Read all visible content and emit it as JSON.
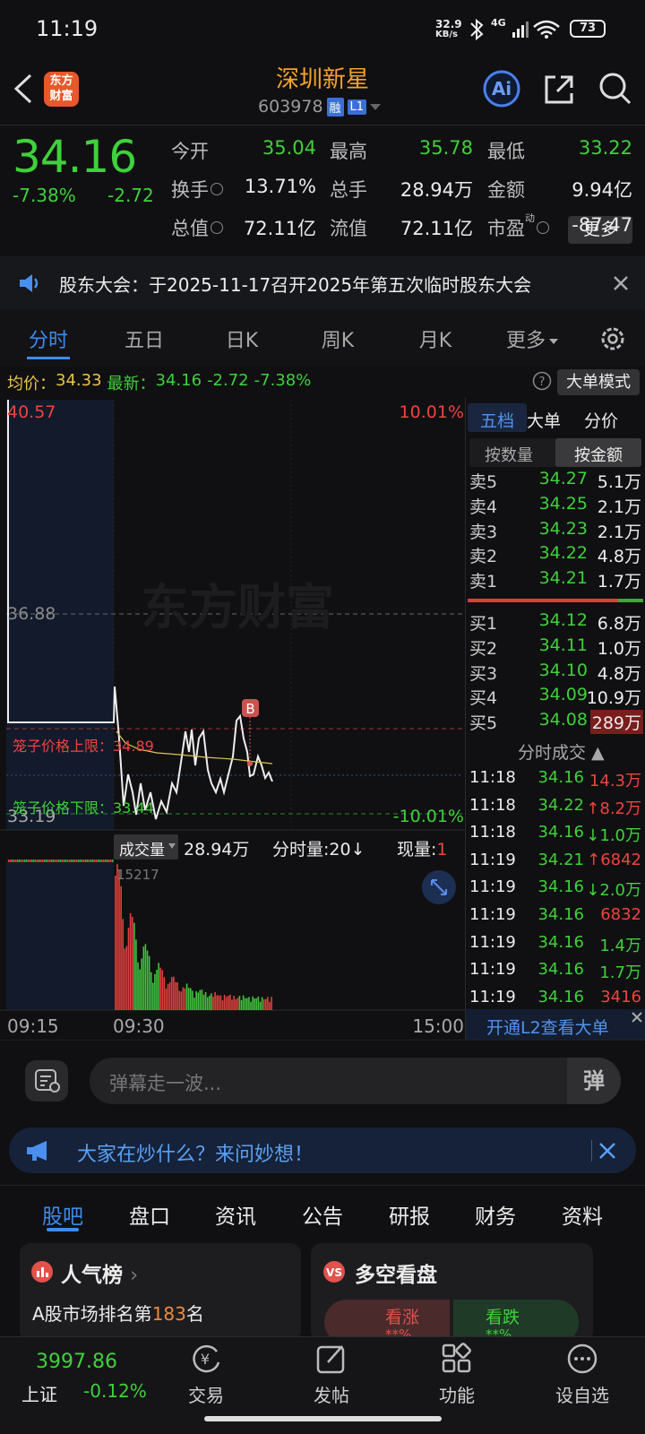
{
  "status_bar": {
    "time": "11:19",
    "net_speed": "32.9",
    "net_unit": "KB/s",
    "network": "4G",
    "battery": "73"
  },
  "header": {
    "logo": [
      "东方",
      "财富"
    ],
    "title": "深圳新星",
    "code": "603978",
    "badges": [
      "融",
      "L1"
    ]
  },
  "quote": {
    "price": "34.16",
    "change_pct": "-7.38%",
    "change": "-2.72",
    "stats": [
      {
        "label": "今开",
        "value": "35.04"
      },
      {
        "label": "最高",
        "value": "35.78"
      },
      {
        "label": "最低",
        "value": "33.22"
      },
      {
        "label": "换手",
        "value": "13.71%"
      },
      {
        "label": "总手",
        "value": "28.94万"
      },
      {
        "label": "金额",
        "value": "9.94亿"
      },
      {
        "label": "总值",
        "value": "72.11亿"
      },
      {
        "label": "流值",
        "value": "72.11亿"
      },
      {
        "label": "市盈",
        "sup": "动",
        "value": "-87.47"
      }
    ],
    "more": "更多"
  },
  "notice": "股东大会：于2025-11-17召开2025年第五次临时股东大会",
  "tabs": [
    "分时",
    "五日",
    "日K",
    "周K",
    "月K",
    "更多"
  ],
  "intraday": {
    "avg_label": "均价：",
    "avg": "34.33",
    "latest_label": "最新：",
    "latest": "34.16",
    "change": "-2.72",
    "change_pct": "-7.38%",
    "mode_button": "大单模式",
    "y_max": "40.57",
    "y_max_pct": "10.01%",
    "y_mid": "36.88",
    "y_min": "33.19",
    "y_min_pct": "-10.01%",
    "upper_limit": "笼子价格上限：34.89",
    "lower_limit": "笼子价格下限：33.44",
    "watermark": "东方财富",
    "marker": "B"
  },
  "volume": {
    "label": "成交量",
    "total": "28.94万",
    "period_label": "分时量:20",
    "arrow": "↓",
    "current_label": "现量:",
    "current": "1",
    "max": "15217",
    "times": [
      "09:15",
      "09:30",
      "15:00"
    ]
  },
  "order_book": {
    "tabs": [
      "五档",
      "大单",
      "分价"
    ],
    "modes": [
      "按数量",
      "按金额"
    ],
    "asks": [
      [
        "卖5",
        "34.27",
        "5.1万"
      ],
      [
        "卖4",
        "34.25",
        "2.1万"
      ],
      [
        "卖3",
        "34.23",
        "2.1万"
      ],
      [
        "卖2",
        "34.22",
        "4.8万"
      ],
      [
        "卖1",
        "34.21",
        "1.7万"
      ]
    ],
    "bids": [
      [
        "买1",
        "34.12",
        "6.8万"
      ],
      [
        "买2",
        "34.11",
        "1.0万"
      ],
      [
        "买3",
        "34.10",
        "4.8万"
      ],
      [
        "买4",
        "34.09",
        "10.9万"
      ],
      [
        "买5",
        "34.08",
        "289万"
      ]
    ]
  },
  "trades": {
    "title": "分时成交",
    "rows": [
      [
        "11:18",
        "34.16",
        "14.3万"
      ],
      [
        "11:18",
        "34.22",
        "↑8.2万"
      ],
      [
        "11:18",
        "34.16",
        "↓1.0万"
      ],
      [
        "11:19",
        "34.21",
        "↑6842"
      ],
      [
        "11:19",
        "34.16",
        "↓2.0万"
      ],
      [
        "11:19",
        "34.16",
        "6832"
      ],
      [
        "11:19",
        "34.16",
        "1.4万"
      ],
      [
        "11:19",
        "34.16",
        "1.7万"
      ],
      [
        "11:19",
        "34.16",
        "3416"
      ]
    ],
    "footer": "开通L2查看大单"
  },
  "comment": {
    "placeholder": "弹幕走一波...",
    "button": "弹"
  },
  "banner": "大家在炒什么？来问妙想！",
  "section_tabs": [
    "股吧",
    "盘口",
    "资讯",
    "公告",
    "研报",
    "财务",
    "资料"
  ],
  "cards": {
    "popularity": {
      "title": "人气榜",
      "text": "A股市场排名第",
      "rank": "183",
      "suffix": "名"
    },
    "sentiment": {
      "title": "多空看盘",
      "bull": "看涨",
      "bear": "看跌",
      "bull_value": "**%",
      "bear_value": "**%"
    }
  },
  "bottom_nav": {
    "index_value": "3997.86",
    "index_name": "上证",
    "index_change": "-0.12%",
    "items": [
      "交易",
      "发帖",
      "功能",
      "设自选"
    ]
  }
}
